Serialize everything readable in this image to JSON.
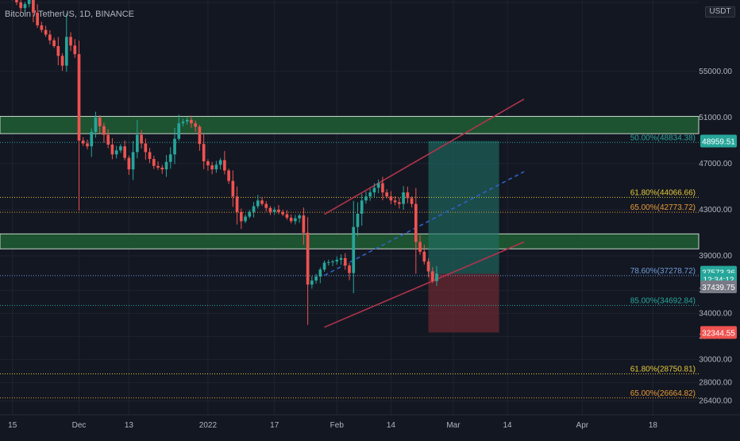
{
  "header": {
    "symbol": "Bitcoin / TetherUS, 1D, BINANCE",
    "unit": "USDT"
  },
  "colors": {
    "bg": "#131722",
    "grid": "#1f2330",
    "axis_text": "#b2b5be",
    "bull": "#26a69a",
    "bear": "#ef5350",
    "zone": "#1f5a32",
    "channel": "#b2344a",
    "dashed": "#2f62c8",
    "target": "#1f6f66",
    "stop": "#6e2930"
  },
  "chart_data": {
    "type": "candlestick",
    "title": "Bitcoin / TetherUS, 1D, BINANCE",
    "ylim": [
      25200,
      61200
    ],
    "y_ticks": [
      26400,
      28000,
      30000,
      32000,
      34000,
      36000,
      39000,
      43000,
      47000,
      51000,
      55000,
      61000
    ],
    "y_tick_labels": [
      "26400.00",
      "28000.00",
      "30000.00",
      "32000.00",
      "34000.00",
      "36000.00",
      "39000.00",
      "43000.00",
      "47000.00",
      "51000.00",
      "55000.00",
      "61000.00"
    ],
    "x_ticks": [
      {
        "label": "15",
        "day": 0
      },
      {
        "label": "Dec",
        "day": 16
      },
      {
        "label": "13",
        "day": 28
      },
      {
        "label": "2022",
        "day": 47
      },
      {
        "label": "17",
        "day": 63
      },
      {
        "label": "Feb",
        "day": 78
      },
      {
        "label": "14",
        "day": 91
      },
      {
        "label": "Mar",
        "day": 106
      },
      {
        "label": "14",
        "day": 119
      },
      {
        "label": "Apr",
        "day": 137
      },
      {
        "label": "18",
        "day": 154
      }
    ],
    "xlim": [
      -3,
      165
    ],
    "candle_points": [
      [
        0,
        61500
      ],
      [
        2,
        60500
      ],
      [
        4,
        61200
      ],
      [
        6,
        59000
      ],
      [
        8,
        58200
      ],
      [
        10,
        57200
      ],
      [
        12,
        55500
      ],
      [
        13,
        58000
      ],
      [
        15,
        56500
      ],
      [
        16,
        49000
      ],
      [
        18,
        48500
      ],
      [
        20,
        51000
      ],
      [
        22,
        49500
      ],
      [
        24,
        47800
      ],
      [
        26,
        48500
      ],
      [
        28,
        46500
      ],
      [
        30,
        49500
      ],
      [
        32,
        48000
      ],
      [
        34,
        46800
      ],
      [
        36,
        46500
      ],
      [
        38,
        47800
      ],
      [
        40,
        50500
      ],
      [
        42,
        50800
      ],
      [
        44,
        50200
      ],
      [
        46,
        47200
      ],
      [
        48,
        46500
      ],
      [
        50,
        47300
      ],
      [
        52,
        45500
      ],
      [
        54,
        42800
      ],
      [
        55,
        42000
      ],
      [
        57,
        42800
      ],
      [
        59,
        43800
      ],
      [
        60,
        43500
      ],
      [
        62,
        42800
      ],
      [
        63,
        43000
      ],
      [
        65,
        42600
      ],
      [
        67,
        42000
      ],
      [
        69,
        42500
      ],
      [
        70,
        41000
      ],
      [
        71,
        36500
      ],
      [
        73,
        37200
      ],
      [
        75,
        38400
      ],
      [
        77,
        38500
      ],
      [
        79,
        38800
      ],
      [
        81,
        37500
      ],
      [
        82,
        41500
      ],
      [
        84,
        43800
      ],
      [
        86,
        44500
      ],
      [
        88,
        45300
      ],
      [
        89,
        44500
      ],
      [
        91,
        43800
      ],
      [
        93,
        43500
      ],
      [
        94,
        44500
      ],
      [
        96,
        43500
      ],
      [
        97,
        40200
      ],
      [
        99,
        38500
      ],
      [
        101,
        36800
      ],
      [
        102,
        37450
      ]
    ],
    "fib_levels": [
      {
        "label": "50.00%(48834.38)",
        "value": 48834.38,
        "color": "#26a69a"
      },
      {
        "label": "61.80%(44066.66)",
        "value": 44066.66,
        "color": "#e6c93a"
      },
      {
        "label": "65.00%(42773.72)",
        "value": 42773.72,
        "color": "#e89a36"
      },
      {
        "label": "78.60%(37278.72)",
        "value": 37278.72,
        "color": "#6e9bd8"
      },
      {
        "label": "85.00%(34692.84)",
        "value": 34692.84,
        "color": "#26a69a"
      },
      {
        "label": "61.80%(28750.81)",
        "value": 28750.81,
        "color": "#e6c93a"
      },
      {
        "label": "65.00%(26664.82)",
        "value": 26664.82,
        "color": "#e89a36"
      }
    ],
    "zones": [
      {
        "from": 49600,
        "to": 51100
      },
      {
        "from": 39600,
        "to": 40900
      }
    ],
    "price_tags": [
      {
        "label": "48959.51",
        "value": 48959.51,
        "color": "#26a69a"
      },
      {
        "label": "37573.36",
        "value": 37573.36,
        "color": "#26a69a"
      },
      {
        "label": "12:34:12",
        "value": 36950,
        "color": "#26a69a"
      },
      {
        "label": "37439.75",
        "value": 36300,
        "color": "#787b86"
      },
      {
        "label": "32344.55",
        "value": 32344.55,
        "color": "#ef5350"
      }
    ],
    "position": {
      "x_from": 100,
      "x_to": 117,
      "entry": 37439.75,
      "target": 48959.51,
      "stop": 32344.55
    },
    "channel_upper": [
      [
        75,
        42600
      ],
      [
        123,
        52600
      ]
    ],
    "channel_lower": [
      [
        75,
        32800
      ],
      [
        123,
        40200
      ]
    ],
    "dashed_mid": [
      [
        75,
        37300
      ],
      [
        123,
        46300
      ]
    ]
  }
}
